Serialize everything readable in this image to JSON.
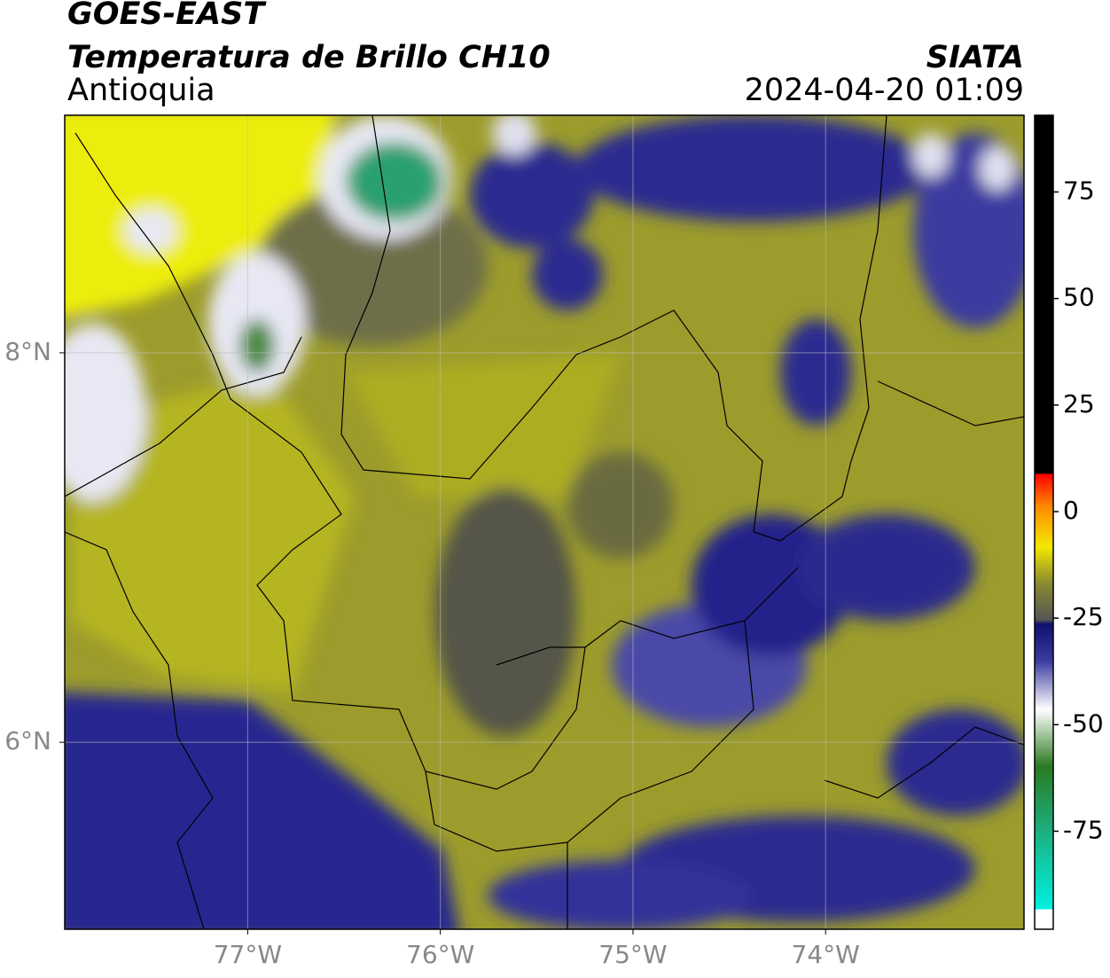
{
  "header": {
    "title": "GOES-EAST",
    "subtitle": "Temperatura de Brillo CH10",
    "region": "Antioquia",
    "source": "SIATA",
    "timestamp": "2024-04-20 01:09"
  },
  "map": {
    "lon_range": [
      -77.95,
      -72.97
    ],
    "lat_range": [
      5.04,
      9.22
    ],
    "lon_ticks": [
      {
        "value": -77,
        "label": "77°W"
      },
      {
        "value": -76,
        "label": "76°W"
      },
      {
        "value": -75,
        "label": "75°W"
      },
      {
        "value": -74,
        "label": "74°W"
      }
    ],
    "lat_ticks": [
      {
        "value": 8,
        "label": "8°N"
      },
      {
        "value": 6,
        "label": "6°N"
      }
    ],
    "grid": true
  },
  "colorbar": {
    "range": [
      -98,
      93
    ],
    "ticks": [
      75,
      50,
      25,
      0,
      -25,
      -50,
      -75
    ]
  }
}
